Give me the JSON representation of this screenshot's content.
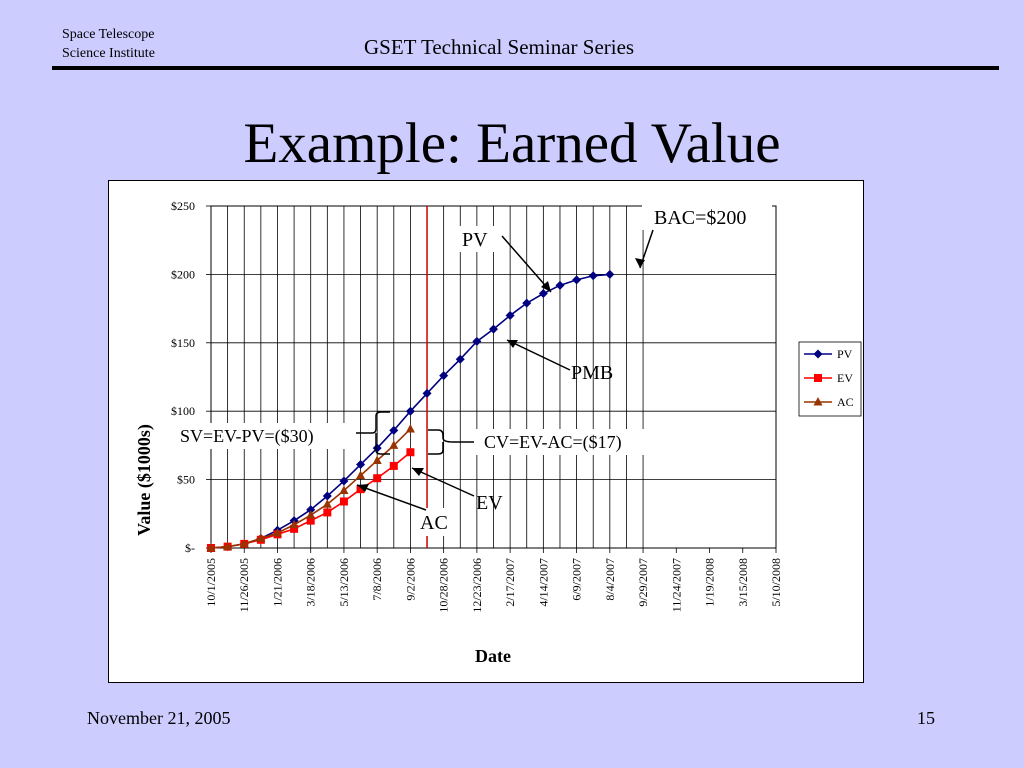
{
  "header": {
    "org_line1": "Space Telescope",
    "org_line2": "Science Institute",
    "series": "GSET Technical Seminar Series"
  },
  "title": "Example: Earned Value",
  "footer": {
    "date": "November 21, 2005",
    "page": "15"
  },
  "colors": {
    "background": "#ccccff",
    "pv": "#000080",
    "ev": "#ff0000",
    "ac": "#993300",
    "status_line": "#cc0000"
  },
  "chart_data": {
    "type": "line",
    "xlabel": "Date",
    "ylabel": "Value ($1000s)",
    "ylim": [
      0,
      250
    ],
    "y_ticks": [
      "$-",
      "$50",
      "$100",
      "$150",
      "$200",
      "$250"
    ],
    "x_ticks": [
      "10/1/2005",
      "11/26/2005",
      "1/21/2006",
      "3/18/2006",
      "5/13/2006",
      "7/8/2006",
      "9/2/2006",
      "10/28/2006",
      "12/23/2006",
      "2/17/2007",
      "4/14/2007",
      "6/9/2007",
      "8/4/2007",
      "9/29/2007",
      "11/24/2007",
      "1/19/2008",
      "3/15/2008",
      "5/10/2008"
    ],
    "x_point_dates": [
      "10/1/2005",
      "10/29/2005",
      "11/26/2005",
      "12/24/2005",
      "1/21/2006",
      "2/18/2006",
      "3/18/2006",
      "4/15/2006",
      "5/13/2006",
      "6/10/2006",
      "7/8/2006",
      "8/5/2006",
      "9/2/2006",
      "9/30/2006",
      "10/28/2006",
      "11/25/2006",
      "12/23/2006",
      "1/20/2007",
      "2/17/2007",
      "3/17/2007",
      "4/14/2007",
      "5/12/2007",
      "6/9/2007",
      "7/7/2007",
      "8/4/2007",
      "9/1/2007",
      "9/29/2007"
    ],
    "grid": true,
    "legend_position": "right",
    "status_date": "9/30/2006",
    "series": [
      {
        "name": "PV",
        "marker": "diamond",
        "color": "#000080",
        "values": [
          0,
          1,
          3,
          7,
          13,
          20,
          28,
          38,
          49,
          61,
          73,
          86,
          100,
          113,
          126,
          138,
          151,
          160,
          170,
          179,
          186,
          192,
          196,
          199,
          200
        ]
      },
      {
        "name": "EV",
        "marker": "square",
        "color": "#ff0000",
        "values": [
          0,
          1,
          3,
          6,
          10,
          14,
          20,
          26,
          34,
          43,
          51,
          60,
          70
        ]
      },
      {
        "name": "AC",
        "marker": "triangle",
        "color": "#993300",
        "values": [
          0,
          1,
          3,
          7,
          11,
          17,
          24,
          32,
          42,
          53,
          64,
          75,
          87
        ]
      }
    ],
    "annotations": {
      "bac": "BAC=$200",
      "pv": "PV",
      "pmb": "PMB",
      "sv": "SV=EV-PV=($30)",
      "cv": "CV=EV-AC=($17)",
      "ev": "EV",
      "ac": "AC"
    }
  }
}
